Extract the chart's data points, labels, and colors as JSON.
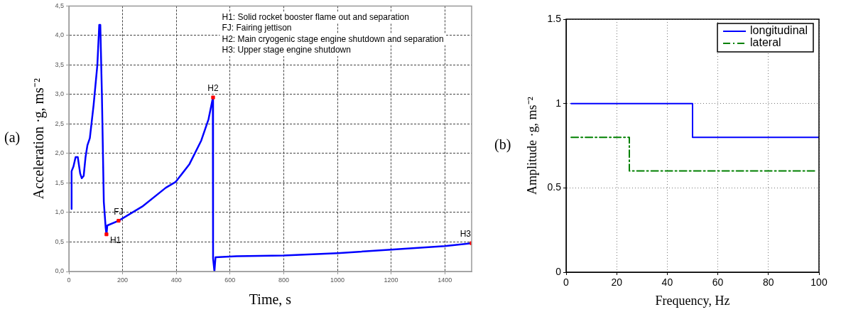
{
  "chart_data": [
    {
      "type": "line",
      "xlabel": "Time, s",
      "ylabel": "Acceleration ·g, ms⁻²",
      "xlim": [
        0,
        1500
      ],
      "xticks": [
        0,
        200,
        400,
        600,
        800,
        1000,
        1200,
        1400
      ],
      "ylim": [
        0,
        4.5
      ],
      "yticks": [
        {
          "value": 0,
          "label": "0,0"
        },
        {
          "value": 0.5,
          "label": "0,5"
        },
        {
          "value": 1,
          "label": "1,0"
        },
        {
          "value": 1.5,
          "label": "1,5"
        },
        {
          "value": 2,
          "label": "2,0"
        },
        {
          "value": 2.5,
          "label": "2,5"
        },
        {
          "value": 3,
          "label": "3,0"
        },
        {
          "value": 3.5,
          "label": "3,5"
        },
        {
          "value": 4,
          "label": "4,0"
        },
        {
          "value": 4.5,
          "label": "4,5"
        }
      ],
      "grid": true,
      "line_style": "solid",
      "marker": "none",
      "series": [
        {
          "color": "#0000ff",
          "x": [
            10,
            10,
            17,
            25,
            33,
            42,
            48,
            55,
            62,
            69,
            78,
            92,
            106,
            113,
            117,
            123,
            130,
            137,
            140,
            143,
            185,
            273,
            361,
            398,
            449,
            493,
            520,
            536,
            537,
            542,
            546,
            625,
            800,
            1000,
            1200,
            1400,
            1500
          ],
          "values": [
            1.06,
            1.7,
            1.78,
            1.94,
            1.94,
            1.66,
            1.58,
            1.62,
            1.94,
            2.14,
            2.26,
            2.82,
            3.5,
            4.18,
            4.18,
            2.98,
            1.18,
            0.74,
            0.62,
            0.78,
            0.86,
            1.1,
            1.42,
            1.52,
            1.82,
            2.22,
            2.58,
            2.94,
            0.22,
            0,
            0.24,
            0.26,
            0.27,
            0.31,
            0.37,
            0.43,
            0.48
          ]
        },
        {
          "type": "scatter",
          "color": "#ff0000",
          "marker": "square",
          "x": [
            140,
            185,
            537,
            1500
          ],
          "values": [
            0.63,
            0.86,
            2.95,
            0.48
          ]
        }
      ],
      "annotations": [
        "(a)",
        "H1: Solid rocket booster flame out and separation",
        "FJ: Fairing jettison",
        "H2: Main cryogenic stage engine shutdown and separation",
        "H3: Upper stage engine shutdown",
        {
          "text": "H1",
          "x": 140,
          "y": 0.63
        },
        {
          "text": "FJ",
          "x": 185,
          "y": 0.86
        },
        {
          "text": "H2",
          "x": 537,
          "y": 2.95
        },
        {
          "text": "H3",
          "x": 1500,
          "y": 0.48
        }
      ]
    },
    {
      "type": "step",
      "xlabel": "Frequency, Hz",
      "ylabel": "Amplitude ·g, ms⁻²",
      "xlim": [
        0,
        100
      ],
      "xticks": [
        0,
        20,
        40,
        60,
        80,
        100
      ],
      "ylim": [
        0,
        1.5
      ],
      "yticks": [
        0,
        0.5,
        1,
        1.5
      ],
      "grid": true,
      "legend": "top right",
      "marker": "none",
      "series": [
        {
          "name": "longitudinal",
          "color": "#0000ff",
          "line_style": "solid",
          "x": [
            2,
            50,
            100
          ],
          "values": [
            1,
            0.8,
            0.8
          ]
        },
        {
          "name": "lateral",
          "color": "#008000",
          "line_style": "dashed",
          "x": [
            2,
            25,
            99
          ],
          "values": [
            0.8,
            0.6,
            0.6
          ]
        }
      ],
      "annotations": [
        "(b)"
      ]
    }
  ]
}
